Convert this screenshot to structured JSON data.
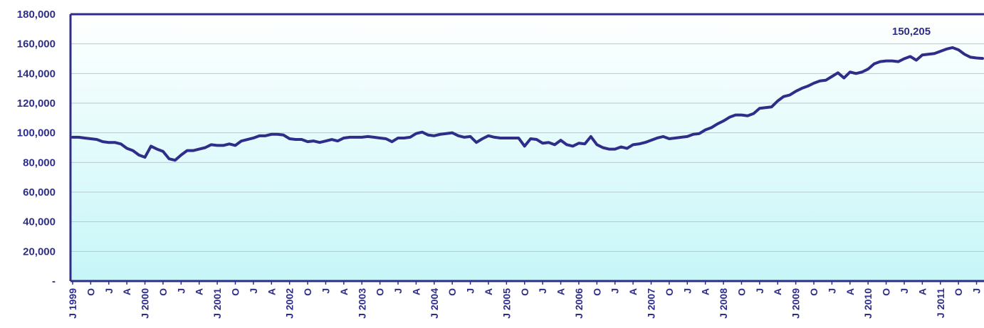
{
  "chart_data": {
    "type": "line",
    "title": "",
    "xlabel": "",
    "ylabel": "",
    "ylim": [
      0,
      180000
    ],
    "grid": true,
    "legend": "none",
    "y_ticks": [
      {
        "value": 0,
        "label": "-"
      },
      {
        "value": 20000,
        "label": "20,000"
      },
      {
        "value": 40000,
        "label": "40,000"
      },
      {
        "value": 60000,
        "label": "60,000"
      },
      {
        "value": 80000,
        "label": "80,000"
      },
      {
        "value": 100000,
        "label": "100,000"
      },
      {
        "value": 120000,
        "label": "120,000"
      },
      {
        "value": 140000,
        "label": "140,000"
      },
      {
        "value": 160000,
        "label": "160,000"
      },
      {
        "value": 180000,
        "label": "180,000"
      }
    ],
    "x_tick_labels": [
      "J 1999",
      "O",
      "J",
      "A",
      "J 2000",
      "O",
      "J",
      "A",
      "J 2001",
      "O",
      "J",
      "A",
      "J 2002",
      "O",
      "J",
      "A",
      "J 2003",
      "O",
      "J",
      "A",
      "J 2004",
      "O",
      "J",
      "A",
      "J 2005",
      "O",
      "J",
      "A",
      "J 2006",
      "O",
      "J",
      "A",
      "J 2007",
      "O",
      "J",
      "A",
      "J 2008",
      "O",
      "J",
      "A",
      "J 2009",
      "O",
      "J",
      "A",
      "J 2010",
      "O",
      "J",
      "A",
      "J 2011",
      "O",
      "J"
    ],
    "annotation": {
      "label": "150,205",
      "value": 150205
    },
    "colors": {
      "line": "#2e2e8a",
      "grid": "#b7c9cf",
      "axis": "#2e2e8a",
      "bg_top": "#ffffff",
      "bg_bottom": "#c6f6f8"
    },
    "series": [
      {
        "values": [
          97000,
          97000,
          96500,
          96000,
          95500,
          94000,
          93500,
          93500,
          92500,
          89500,
          88000,
          85000,
          83500,
          91000,
          89000,
          87500,
          82500,
          81500,
          85000,
          88000,
          88000,
          89000,
          90000,
          92000,
          91500,
          91500,
          92500,
          91500,
          94500,
          95500,
          96500,
          98000,
          98000,
          99000,
          99000,
          98500,
          96000,
          95500,
          95500,
          94000,
          94500,
          93500,
          94500,
          95500,
          94500,
          96500,
          97000,
          97000,
          97000,
          97500,
          97000,
          96500,
          96000,
          94000,
          96500,
          96500,
          97000,
          99500,
          100500,
          98500,
          98000,
          99000,
          99500,
          100000,
          98000,
          97000,
          97500,
          93500,
          96000,
          98000,
          97000,
          96500,
          96500,
          96500,
          96500,
          91000,
          96000,
          95500,
          93000,
          93500,
          92000,
          95000,
          92000,
          91000,
          93000,
          92500,
          97500,
          92000,
          90000,
          89000,
          89000,
          90500,
          89500,
          92000,
          92500,
          93500,
          95000,
          96500,
          97500,
          96000,
          96500,
          97000,
          97500,
          99000,
          99500,
          102000,
          103500,
          106000,
          108000,
          110500,
          112000,
          112000,
          111500,
          113000,
          116500,
          117000,
          117500,
          121500,
          124500,
          125500,
          128000,
          130000,
          131500,
          133500,
          135000,
          135500,
          138000,
          140500,
          137000,
          141000,
          140000,
          141000,
          143000,
          146500,
          148000,
          148500,
          148500,
          148000,
          150000,
          151500,
          149000,
          152500,
          153000,
          153500,
          155000,
          156500,
          157500,
          156000,
          153000,
          151000,
          150500,
          150205
        ]
      }
    ]
  }
}
